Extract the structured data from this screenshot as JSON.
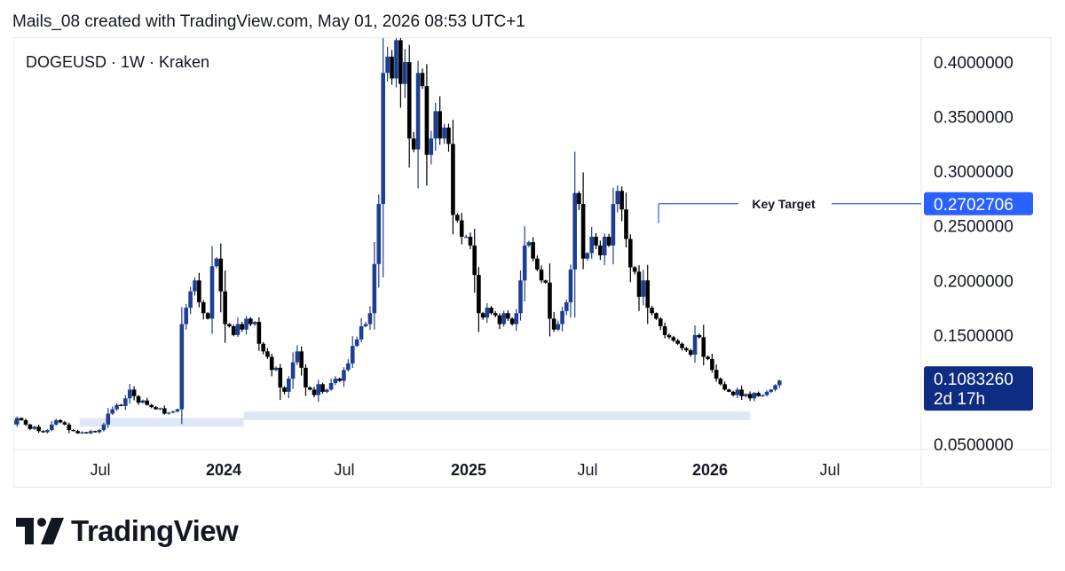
{
  "header": {
    "caption": "Mails_08 created with TradingView.com, May 01, 2026 08:53 UTC+1"
  },
  "symbol": {
    "label": "DOGEUSD · 1W · Kraken"
  },
  "brand": {
    "name": "TradingView",
    "logo_icon": "tradingview-logo-icon"
  },
  "colors": {
    "up_candle": "#1e3f91",
    "down_candle": "#000000",
    "support_zone": "#dfe7f6",
    "target_line": "#2962ff",
    "target_badge": "#2962ff",
    "last_price_badge": "#0f2c83",
    "grid": "#e6e8ee"
  },
  "chart_data": {
    "type": "candlestick",
    "title": "DOGEUSD · 1W · Kraken",
    "x_axis_labels": [
      "Jul",
      "2024",
      "Jul",
      "2025",
      "Jul",
      "2026",
      "Jul"
    ],
    "bold_x_labels": [
      "2024",
      "2025",
      "2026"
    ],
    "y_axis_labels": [
      "0.4000000",
      "0.3500000",
      "0.3000000",
      "0.2500000",
      "0.2000000",
      "0.1500000",
      "0.0500000"
    ],
    "ylim": [
      0.045,
      0.43
    ],
    "price_scale_position": "right",
    "annotation": {
      "label": "Key Target",
      "price": 0.2702706,
      "price_label": "0.2702706"
    },
    "last_price": {
      "value": 0.108326,
      "value_label": "0.1083260",
      "countdown": "2d 17h"
    },
    "support_zones": [
      {
        "from": "2023-06",
        "to": "2024-02",
        "low": 0.066,
        "high": 0.074
      },
      {
        "from": "2024-02",
        "to": "2026-03",
        "low": 0.072,
        "high": 0.08
      }
    ],
    "weekly_close_path": [
      0.078,
      0.072,
      0.068,
      0.074,
      0.072,
      0.068,
      0.064,
      0.066,
      0.062,
      0.061,
      0.063,
      0.068,
      0.072,
      0.07,
      0.068,
      0.063,
      0.062,
      0.06,
      0.061,
      0.06,
      0.062,
      0.061,
      0.063,
      0.068,
      0.078,
      0.082,
      0.086,
      0.085,
      0.092,
      0.1,
      0.094,
      0.088,
      0.09,
      0.086,
      0.084,
      0.082,
      0.083,
      0.078,
      0.079,
      0.08,
      0.082,
      0.16,
      0.175,
      0.19,
      0.2,
      0.18,
      0.17,
      0.165,
      0.213,
      0.22,
      0.19,
      0.16,
      0.158,
      0.15,
      0.16,
      0.155,
      0.165,
      0.16,
      0.162,
      0.142,
      0.135,
      0.13,
      0.118,
      0.12,
      0.102,
      0.098,
      0.11,
      0.125,
      0.135,
      0.12,
      0.102,
      0.1,
      0.095,
      0.105,
      0.098,
      0.1,
      0.106,
      0.11,
      0.108,
      0.118,
      0.124,
      0.14,
      0.146,
      0.158,
      0.16,
      0.17,
      0.215,
      0.27,
      0.39,
      0.405,
      0.385,
      0.42,
      0.38,
      0.4,
      0.33,
      0.32,
      0.39,
      0.378,
      0.315,
      0.33,
      0.355,
      0.33,
      0.34,
      0.325,
      0.26,
      0.255,
      0.24,
      0.24,
      0.232,
      0.205,
      0.17,
      0.166,
      0.175,
      0.17,
      0.168,
      0.16,
      0.17,
      0.165,
      0.16,
      0.17,
      0.2,
      0.232,
      0.235,
      0.22,
      0.21,
      0.2,
      0.198,
      0.165,
      0.155,
      0.16,
      0.172,
      0.18,
      0.21,
      0.28,
      0.27,
      0.22,
      0.225,
      0.24,
      0.232,
      0.223,
      0.24,
      0.232,
      0.27,
      0.282,
      0.265,
      0.238,
      0.212,
      0.208,
      0.185,
      0.2,
      0.175,
      0.17,
      0.165,
      0.158,
      0.15,
      0.148,
      0.145,
      0.142,
      0.138,
      0.136,
      0.132,
      0.15,
      0.148,
      0.13,
      0.128,
      0.118,
      0.11,
      0.105,
      0.1,
      0.098,
      0.095,
      0.1,
      0.094,
      0.096,
      0.092,
      0.097,
      0.094,
      0.095,
      0.098,
      0.1,
      0.104,
      0.108326
    ]
  }
}
